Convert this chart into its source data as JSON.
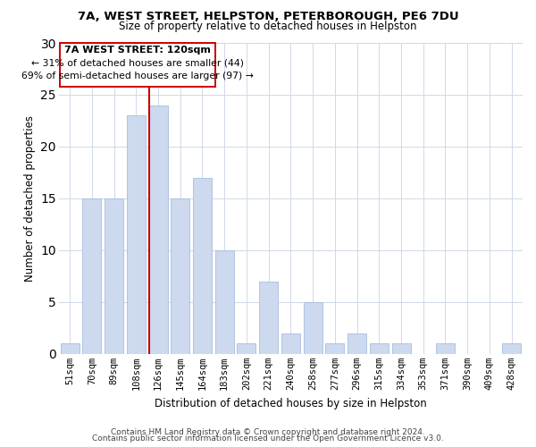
{
  "title1": "7A, WEST STREET, HELPSTON, PETERBOROUGH, PE6 7DU",
  "title2": "Size of property relative to detached houses in Helpston",
  "xlabel": "Distribution of detached houses by size in Helpston",
  "ylabel": "Number of detached properties",
  "bins": [
    "51sqm",
    "70sqm",
    "89sqm",
    "108sqm",
    "126sqm",
    "145sqm",
    "164sqm",
    "183sqm",
    "202sqm",
    "221sqm",
    "240sqm",
    "258sqm",
    "277sqm",
    "296sqm",
    "315sqm",
    "334sqm",
    "353sqm",
    "371sqm",
    "390sqm",
    "409sqm",
    "428sqm"
  ],
  "values": [
    1,
    15,
    15,
    23,
    24,
    15,
    17,
    10,
    1,
    7,
    2,
    5,
    1,
    2,
    1,
    1,
    0,
    1,
    0,
    0,
    1
  ],
  "bar_color": "#ccd9ee",
  "bar_edgecolor": "#a8bedd",
  "redline_bin_index": 4,
  "annotation_line1": "7A WEST STREET: 120sqm",
  "annotation_line2": "← 31% of detached houses are smaller (44)",
  "annotation_line3": "69% of semi-detached houses are larger (97) →",
  "annotation_box_facecolor": "#ffffff",
  "annotation_box_edgecolor": "#cc0000",
  "redline_color": "#cc0000",
  "footer1": "Contains HM Land Registry data © Crown copyright and database right 2024.",
  "footer2": "Contains public sector information licensed under the Open Government Licence v3.0.",
  "ylim": [
    0,
    30
  ],
  "yticks": [
    0,
    5,
    10,
    15,
    20,
    25,
    30
  ],
  "background_color": "#ffffff",
  "grid_color": "#d0d8e8",
  "title1_fontsize": 9.5,
  "title2_fontsize": 8.5,
  "ylabel_fontsize": 8.5,
  "xlabel_fontsize": 8.5,
  "tick_fontsize": 7.5,
  "footer_fontsize": 6.5,
  "footer_color": "#444444"
}
